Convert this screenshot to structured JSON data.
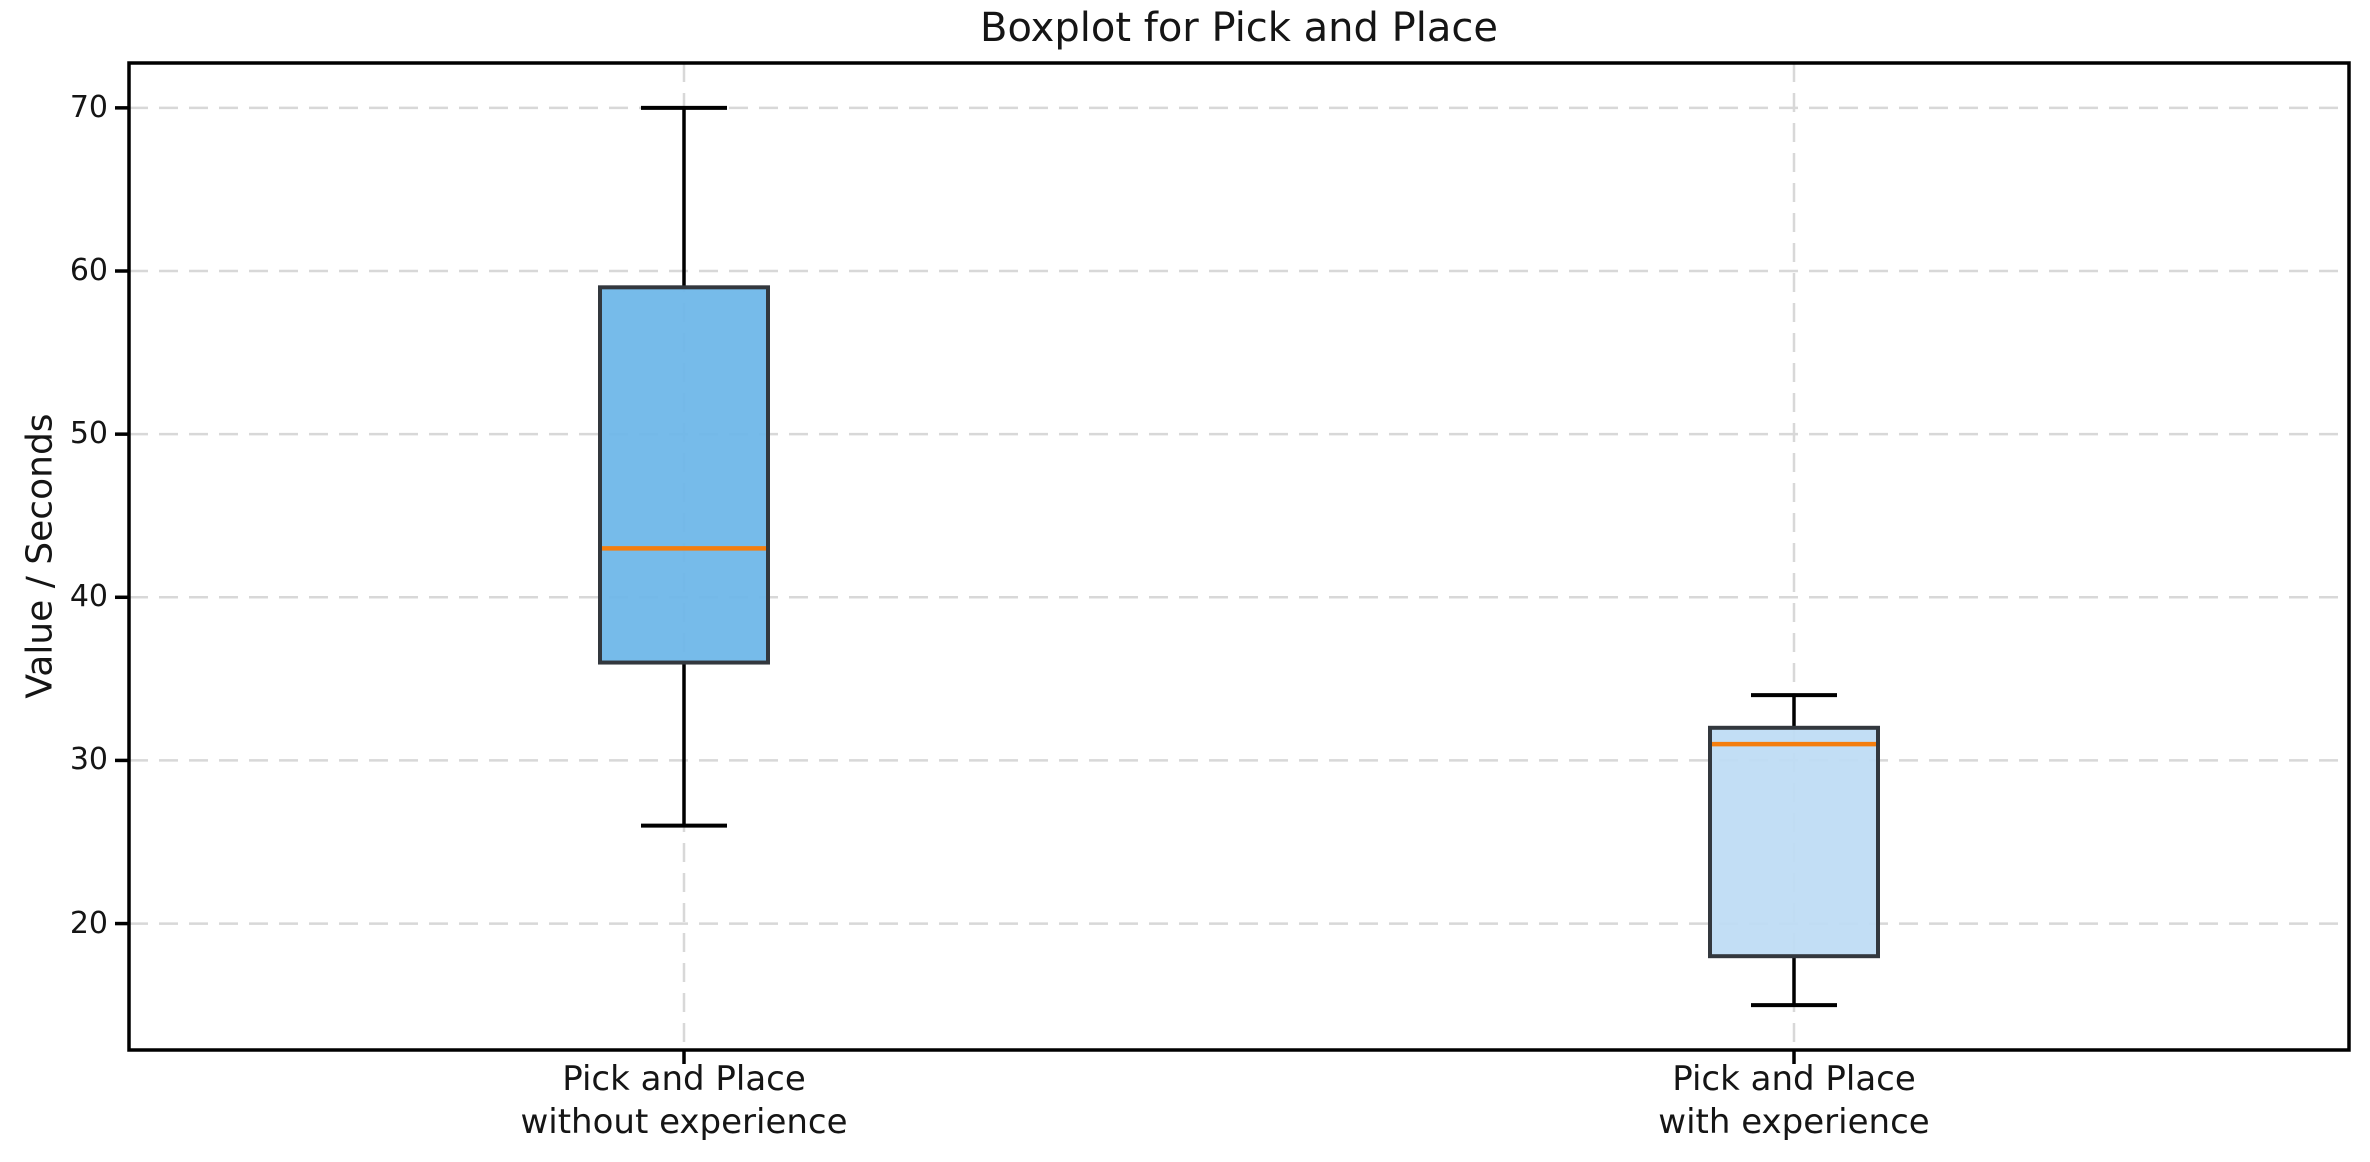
{
  "chart_data": {
    "type": "boxplot",
    "title": "Boxplot for Pick and Place",
    "ylabel": "Value / Seconds",
    "xlabel": "",
    "ylim": [
      12.25,
      72.75
    ],
    "yticks": [
      20,
      30,
      40,
      50,
      60,
      70
    ],
    "grid": {
      "enabled": true,
      "style": "dashed",
      "axis": "both"
    },
    "legend": "none",
    "categories": [
      "Pick and Place\nwithout experience",
      "Pick and Place\nwith experience"
    ],
    "series": [
      {
        "name": "Pick and Place without experience",
        "min": 26,
        "q1": 36,
        "median": 43,
        "q3": 59,
        "max": 70,
        "fill": "#6cb6e8"
      },
      {
        "name": "Pick and Place with experience",
        "min": 15,
        "q1": 18,
        "median": 31,
        "q3": 32,
        "max": 34,
        "fill": "#bddcf4"
      }
    ],
    "colors": {
      "median_line": "#f57e0e",
      "box_edge": "#33383e",
      "whisker": "#000000",
      "spine": "#000000",
      "grid": "#d8d8d8",
      "background": "#ffffff",
      "text": "#151515"
    }
  }
}
